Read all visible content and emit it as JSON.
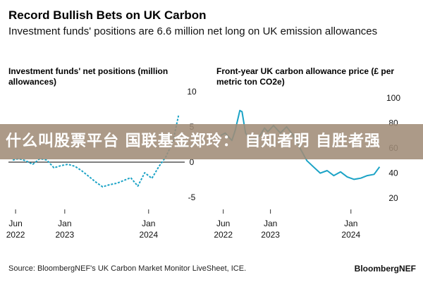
{
  "header": {
    "title": "Record Bullish Bets on UK Carbon",
    "subtitle": "Investment funds' positions are 6.6 million net long on UK emission allowances"
  },
  "banner_text": "什么叫股票平台 国联基金郑玲： 自知者明 自胜者强",
  "footer": {
    "source": "Source: BloombergNEF's UK Carbon Market Monitor LiveSheet, ICE.",
    "brand": "BloombergNEF"
  },
  "colors": {
    "line": "#1ba3c6",
    "zero_line": "#000000",
    "text": "#111111"
  },
  "chart_data": [
    {
      "type": "line",
      "title": "Investment funds' net positions (million allowances)",
      "ylim": [
        -6,
        10
      ],
      "y_ticks": [
        10,
        5,
        0,
        -5
      ],
      "y_tick_labels": [
        "10",
        "5",
        "0",
        "-5"
      ],
      "x_ticks": [
        "2022-06-01",
        "2023-01-01",
        "2024-01-01"
      ],
      "x_tick_labels": [
        [
          "Jun",
          "2022"
        ],
        [
          "Jan",
          "2023"
        ],
        [
          "Jan",
          "2024"
        ]
      ],
      "zero_line": true,
      "grid": false,
      "series": [
        {
          "style": "dashed",
          "x": [
            "2022-05-20",
            "2022-06-15",
            "2022-07-15",
            "2022-08-15",
            "2022-09-15",
            "2022-10-15",
            "2022-11-15",
            "2022-12-15",
            "2023-01-15",
            "2023-02-15",
            "2023-03-15",
            "2023-04-15",
            "2023-05-15",
            "2023-06-15",
            "2023-07-15",
            "2023-08-15",
            "2023-09-15",
            "2023-10-15",
            "2023-11-15",
            "2023-12-15",
            "2024-01-15",
            "2024-02-15",
            "2024-03-15",
            "2024-04-15",
            "2024-05-10"
          ],
          "y": [
            0.3,
            0.5,
            0.2,
            -0.3,
            0.5,
            0.3,
            -0.8,
            -0.5,
            -0.3,
            -0.6,
            -1.2,
            -2.0,
            -2.8,
            -3.5,
            -3.2,
            -3.0,
            -2.6,
            -2.2,
            -3.4,
            -1.5,
            -2.3,
            -0.6,
            0.7,
            2.8,
            6.6
          ]
        }
      ]
    },
    {
      "type": "line",
      "title": "Front-year UK carbon allowance price (£ per metric ton CO2e)",
      "ylim": [
        15,
        105
      ],
      "y_ticks": [
        100,
        80,
        60,
        40,
        20
      ],
      "y_tick_labels": [
        "100",
        "80",
        "60",
        "40",
        "20"
      ],
      "x_ticks": [
        "2022-06-01",
        "2023-01-01",
        "2024-01-01"
      ],
      "x_tick_labels": [
        [
          "Jun",
          "2022"
        ],
        [
          "Jan",
          "2023"
        ],
        [
          "Jan",
          "2024"
        ]
      ],
      "zero_line": false,
      "grid": false,
      "series": [
        {
          "style": "solid",
          "x": [
            "2022-05-20",
            "2022-06-10",
            "2022-06-25",
            "2022-07-10",
            "2022-07-25",
            "2022-08-15",
            "2022-08-25",
            "2022-09-10",
            "2022-09-25",
            "2022-10-15",
            "2022-11-15",
            "2022-12-05",
            "2022-12-20",
            "2023-01-15",
            "2023-02-15",
            "2023-03-15",
            "2023-04-15",
            "2023-05-15",
            "2023-06-15",
            "2023-07-15",
            "2023-08-15",
            "2023-09-15",
            "2023-10-15",
            "2023-11-15",
            "2023-12-15",
            "2024-01-15",
            "2024-02-15",
            "2024-03-15",
            "2024-04-15",
            "2024-05-10"
          ],
          "y": [
            70,
            72,
            69,
            66,
            74,
            90,
            89,
            72,
            68,
            66,
            70,
            76,
            73,
            78,
            72,
            77,
            70,
            60,
            50,
            45,
            40,
            42,
            38,
            41,
            37,
            35,
            36,
            38,
            39,
            45
          ]
        }
      ]
    }
  ]
}
